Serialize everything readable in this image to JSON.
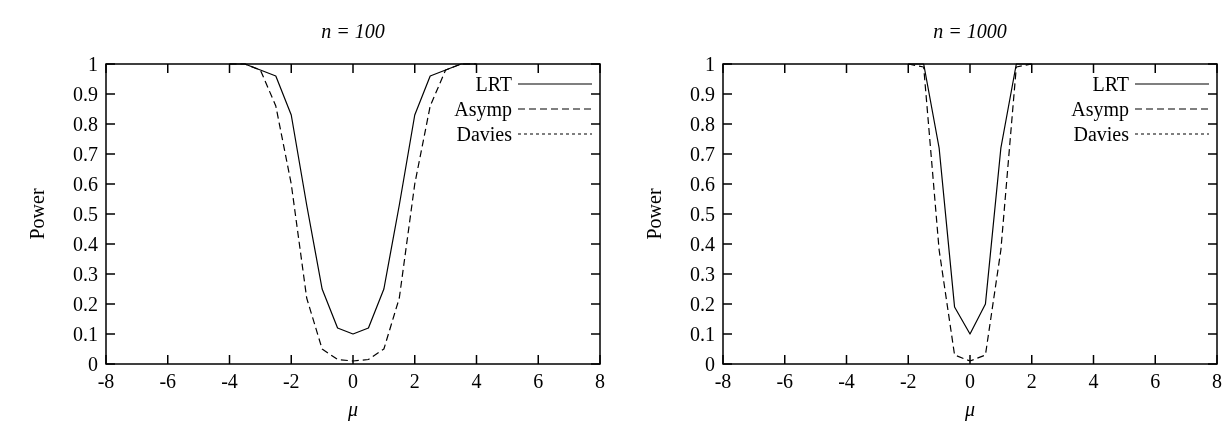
{
  "chart_data": [
    {
      "type": "line",
      "title": "n = 100",
      "xlabel": "μ",
      "ylabel": "Power",
      "xlim": [
        -8,
        8
      ],
      "xticks": [
        -8,
        -6,
        -4,
        -2,
        0,
        2,
        4,
        6,
        8
      ],
      "ylim": [
        0,
        1
      ],
      "yticks": [
        0,
        0.1,
        0.2,
        0.3,
        0.4,
        0.5,
        0.6,
        0.7,
        0.8,
        0.9,
        1
      ],
      "grid": false,
      "legend": "top right",
      "x": [
        -4,
        -3.5,
        -3,
        -2.5,
        -2,
        -1.5,
        -1,
        -0.5,
        0,
        0.5,
        1,
        1.5,
        2,
        2.5,
        3,
        3.5,
        4
      ],
      "series": [
        {
          "name": "LRT",
          "color": "#000000",
          "line_style": "solid",
          "values": [
            1,
            1,
            0.98,
            0.96,
            0.83,
            0.53,
            0.25,
            0.12,
            0.1,
            0.12,
            0.25,
            0.53,
            0.83,
            0.96,
            0.98,
            1,
            1
          ]
        },
        {
          "name": "Asymp",
          "color": "#000000",
          "line_style": "dashed",
          "values": [
            1,
            1,
            0.98,
            0.86,
            0.6,
            0.22,
            0.05,
            0.015,
            0.01,
            0.015,
            0.05,
            0.22,
            0.6,
            0.86,
            0.98,
            1,
            1
          ]
        },
        {
          "name": "Davies",
          "color": "#000000",
          "line_style": "dotted",
          "values": [
            null,
            null,
            null,
            null,
            null,
            null,
            null,
            null,
            null,
            null,
            null,
            null,
            null,
            null,
            null,
            null,
            null
          ]
        }
      ]
    },
    {
      "type": "line",
      "title": "n = 1000",
      "xlabel": "μ",
      "ylabel": "Power",
      "xlim": [
        -8,
        8
      ],
      "xticks": [
        -8,
        -6,
        -4,
        -2,
        0,
        2,
        4,
        6,
        8
      ],
      "ylim": [
        0,
        1
      ],
      "yticks": [
        0,
        0.1,
        0.2,
        0.3,
        0.4,
        0.5,
        0.6,
        0.7,
        0.8,
        0.9,
        1
      ],
      "grid": false,
      "legend": "top right",
      "x": [
        -2,
        -1.5,
        -1,
        -0.5,
        0,
        0.5,
        1,
        1.5,
        2
      ],
      "series": [
        {
          "name": "LRT",
          "color": "#000000",
          "line_style": "solid",
          "values": [
            1,
            1,
            0.72,
            0.19,
            0.1,
            0.2,
            0.72,
            1,
            1
          ]
        },
        {
          "name": "Asymp",
          "color": "#000000",
          "line_style": "dashed",
          "values": [
            1,
            0.99,
            0.38,
            0.03,
            0.01,
            0.03,
            0.38,
            0.99,
            1
          ]
        },
        {
          "name": "Davies",
          "color": "#000000",
          "line_style": "dotted",
          "values": [
            null,
            null,
            null,
            null,
            null,
            null,
            null,
            null,
            null
          ]
        }
      ]
    }
  ]
}
